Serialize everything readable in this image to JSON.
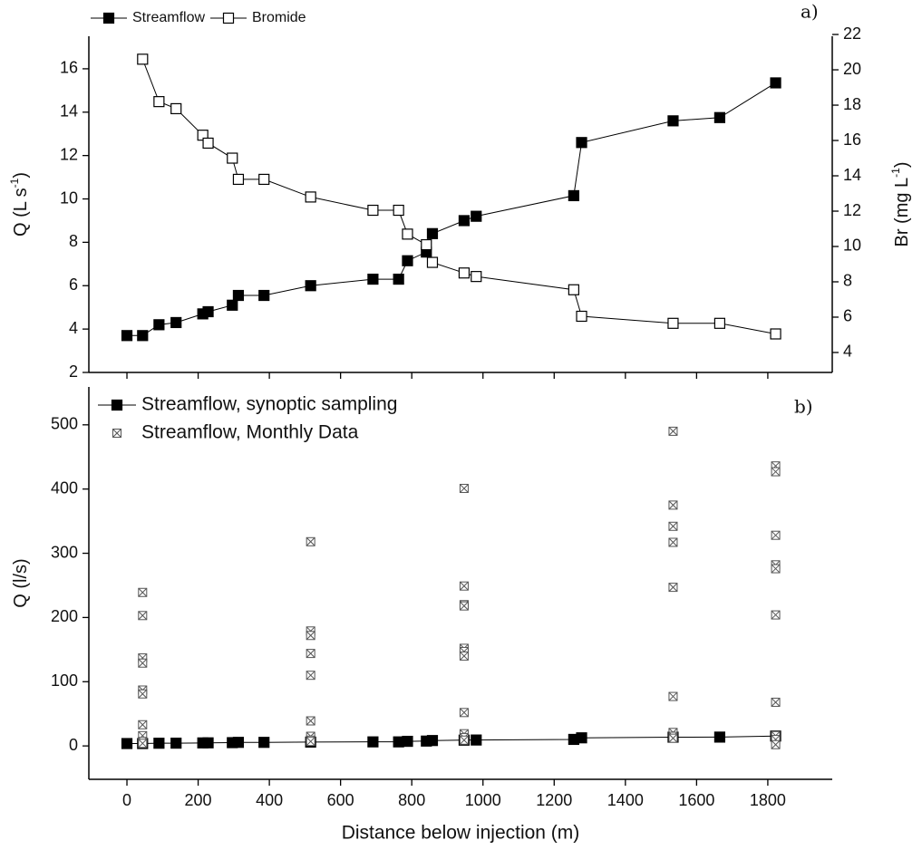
{
  "chart_data": [
    {
      "type": "line",
      "annotation": "a)",
      "xlim": [
        -107,
        1981
      ],
      "xticks": [
        0,
        200,
        400,
        600,
        800,
        1000,
        1200,
        1400,
        1600,
        1800
      ],
      "ylabel": [
        "Q (L s",
        "-1",
        ")"
      ],
      "y2label": [
        "Br (mg L",
        "-1",
        ")"
      ],
      "ylim": [
        2,
        17.5
      ],
      "yticks": [
        2,
        4,
        6,
        8,
        10,
        12,
        14,
        16
      ],
      "y2lim": [
        2.87,
        21.9
      ],
      "y2ticks": [
        4,
        6,
        8,
        10,
        12,
        14,
        16,
        18,
        20,
        22
      ],
      "legend": "above",
      "series": [
        {
          "name": "Streamflow",
          "color": "#000000",
          "marker": "filled-square",
          "line": true,
          "x": [
            0,
            44,
            90,
            138,
            213,
            228,
            296,
            313,
            385,
            516,
            691,
            763,
            788,
            841,
            858,
            947,
            981,
            1255,
            1277,
            1534,
            1665,
            1822
          ],
          "values": [
            3.7,
            3.7,
            4.2,
            4.3,
            4.7,
            4.8,
            5.1,
            5.55,
            5.55,
            6.0,
            6.3,
            6.3,
            7.15,
            7.55,
            8.4,
            9.0,
            9.2,
            10.15,
            12.6,
            13.6,
            13.75,
            15.35
          ]
        },
        {
          "name": "Bromide",
          "color": "#000000",
          "marker": "open-square",
          "line": true,
          "axis": "y2",
          "x": [
            44,
            90,
            138,
            213,
            228,
            296,
            313,
            385,
            516,
            691,
            763,
            788,
            841,
            858,
            947,
            981,
            1255,
            1277,
            1534,
            1665,
            1822
          ],
          "values": [
            20.6,
            18.2,
            17.8,
            16.3,
            15.85,
            15.0,
            13.8,
            13.8,
            12.8,
            12.05,
            12.05,
            10.7,
            10.1,
            9.1,
            8.5,
            8.3,
            7.55,
            6.05,
            5.65,
            5.65,
            5.05
          ]
        }
      ]
    },
    {
      "type": "scatter",
      "annotation": "b)",
      "xlabel": "Distance below injection (m)",
      "ylabel": [
        "Q (l/s)"
      ],
      "xlim": [
        -107,
        1981
      ],
      "xticks": [
        0,
        200,
        400,
        600,
        800,
        1000,
        1200,
        1400,
        1600,
        1800
      ],
      "ylim": [
        -52,
        559
      ],
      "yticks": [
        0,
        100,
        200,
        300,
        400,
        500
      ],
      "legend": "upper left",
      "series": [
        {
          "name": "Streamflow, synoptic sampling",
          "color": "#000000",
          "marker": "filled-square",
          "line": true,
          "x": [
            0,
            44,
            90,
            138,
            213,
            228,
            296,
            313,
            385,
            516,
            691,
            763,
            788,
            841,
            858,
            947,
            981,
            1255,
            1277,
            1534,
            1665,
            1822
          ],
          "values": [
            3.7,
            3.7,
            4.2,
            4.3,
            4.7,
            4.8,
            5.1,
            5.55,
            5.55,
            6.0,
            6.3,
            6.3,
            7.15,
            7.55,
            8.4,
            9.0,
            9.2,
            10.15,
            12.6,
            13.6,
            13.75,
            15.35
          ]
        },
        {
          "name": "Streamflow, Monthly Data",
          "color": "#555555",
          "marker": "crossed-square",
          "line": false,
          "x": [
            44,
            44,
            44,
            44,
            44,
            44,
            44,
            44,
            44,
            44,
            516,
            516,
            516,
            516,
            516,
            516,
            516,
            516,
            516,
            947,
            947,
            947,
            947,
            947,
            947,
            947,
            947,
            947,
            947,
            947,
            1534,
            1534,
            1534,
            1534,
            1534,
            1534,
            1534,
            1534,
            1534,
            1822,
            1822,
            1822,
            1822,
            1822,
            1822,
            1822,
            1822,
            1822,
            1822
          ],
          "values": [
            239,
            203,
            137,
            129,
            87,
            81,
            33,
            16,
            7,
            4,
            318,
            179,
            172,
            144,
            110,
            39,
            15,
            9,
            7,
            401,
            249,
            220,
            218,
            152,
            147,
            140,
            52,
            19,
            13,
            9,
            490,
            375,
            342,
            317,
            247,
            77,
            21,
            15,
            12,
            436,
            427,
            328,
            282,
            276,
            204,
            68,
            16,
            10,
            2
          ]
        }
      ]
    }
  ]
}
